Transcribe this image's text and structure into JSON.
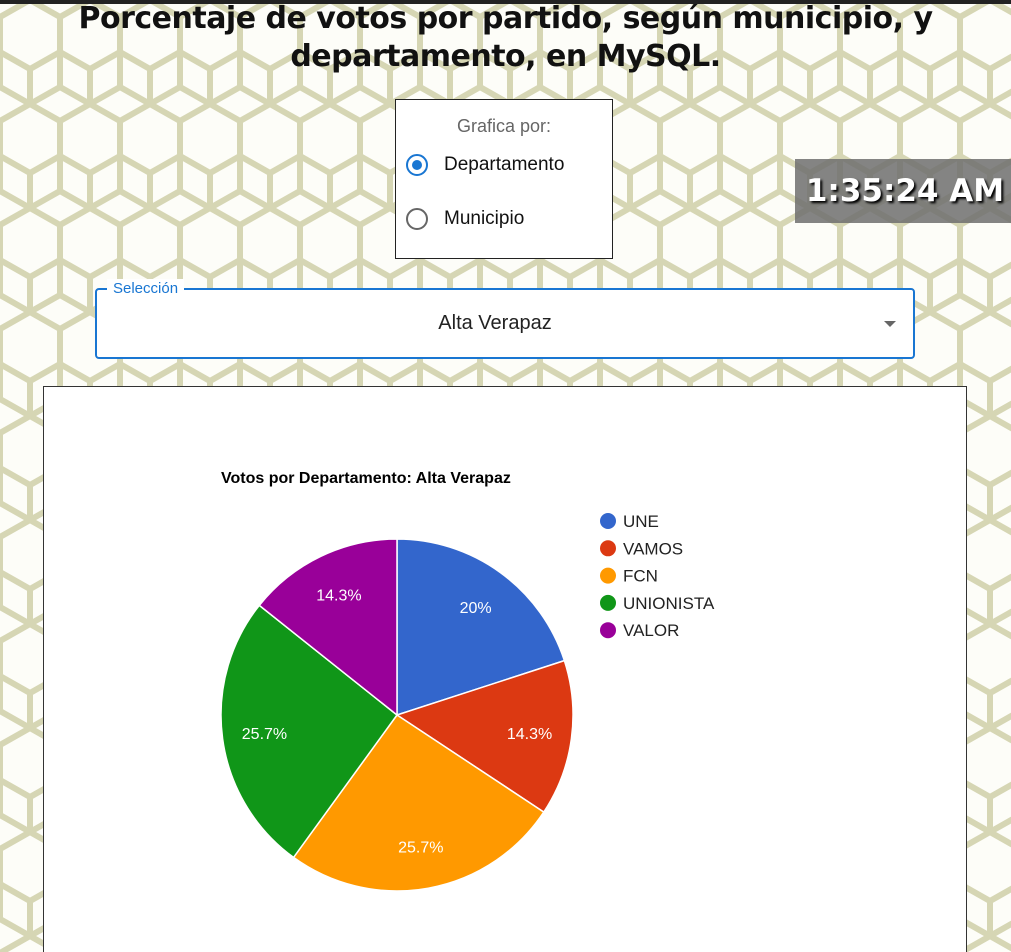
{
  "page": {
    "title": "Porcentaje de votos por partido, según municipio, y departamento, en MySQL."
  },
  "radio_group": {
    "legend": "Grafica por:",
    "options": [
      {
        "label": "Departamento",
        "checked": true
      },
      {
        "label": "Municipio",
        "checked": false
      }
    ]
  },
  "clock": {
    "time": "1:35:24 AM"
  },
  "select": {
    "label": "Selección",
    "value": "Alta Verapaz",
    "icon": "chevron-down-icon"
  },
  "colors": {
    "accent": "#1976d2",
    "background_pattern": "#d8d8b8"
  },
  "chart_data": {
    "type": "pie",
    "title": "Votos por Departamento: Alta Verapaz",
    "legend_position": "right",
    "slices": [
      {
        "label": "UNE",
        "value": 20,
        "display": "20%",
        "color": "#3366cc"
      },
      {
        "label": "VAMOS",
        "value": 14.3,
        "display": "14.3%",
        "color": "#dc3912"
      },
      {
        "label": "FCN",
        "value": 25.7,
        "display": "25.7%",
        "color": "#ff9900"
      },
      {
        "label": "UNIONISTA",
        "value": 25.7,
        "display": "25.7%",
        "color": "#109618"
      },
      {
        "label": "VALOR",
        "value": 14.3,
        "display": "14.3%",
        "color": "#990099"
      }
    ]
  }
}
